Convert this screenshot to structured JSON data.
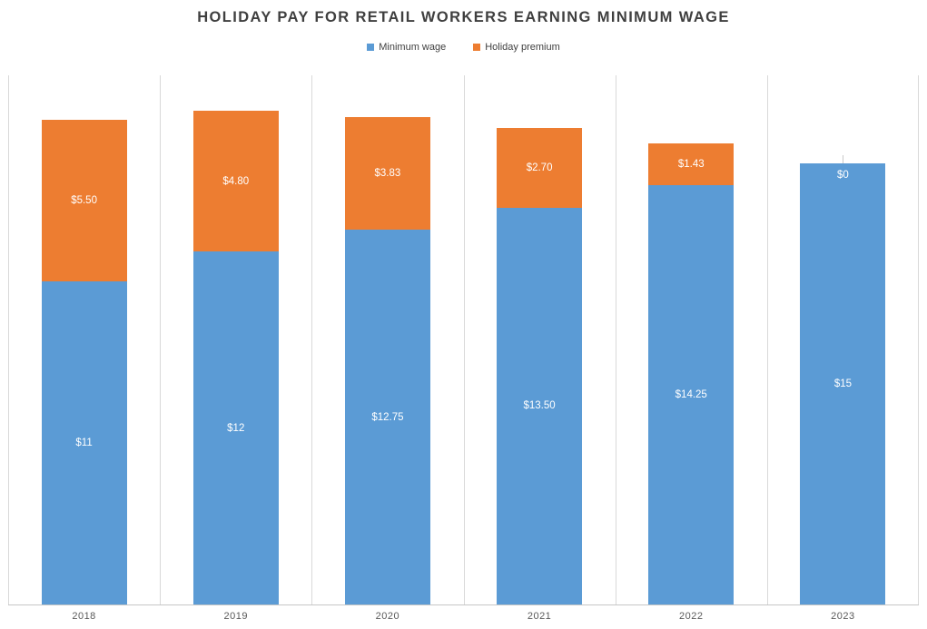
{
  "chart_data": {
    "type": "bar",
    "stacked": true,
    "title": "HOLIDAY PAY FOR RETAIL WORKERS EARNING MINIMUM WAGE",
    "categories": [
      "2018",
      "2019",
      "2020",
      "2021",
      "2022",
      "2023"
    ],
    "series": [
      {
        "name": "Minimum wage",
        "color": "#5B9BD5",
        "values": [
          11,
          12,
          12.75,
          13.5,
          14.25,
          15
        ],
        "data_labels": [
          "$11",
          "$12",
          "$12.75",
          "$13.50",
          "$14.25",
          "$15"
        ]
      },
      {
        "name": "Holiday premium",
        "color": "#ED7D31",
        "values": [
          5.5,
          4.8,
          3.83,
          2.7,
          1.43,
          0
        ],
        "data_labels": [
          "$5.50",
          "$4.80",
          "$3.83",
          "$2.70",
          "$1.43",
          "$0"
        ]
      }
    ],
    "xlabel": "",
    "ylabel": "",
    "ylim": [
      0,
      18
    ],
    "gridlines": "vertical-only",
    "legend_position": "top",
    "data_label_position": "center",
    "colors": {
      "title_text": "#3F3F3F",
      "axis_text": "#595959",
      "gridline": "#D9D9D9",
      "axis_line": "#C6C6C6",
      "data_label_text": "#FFFFFF",
      "leader_line": "#C9C9C9"
    }
  }
}
